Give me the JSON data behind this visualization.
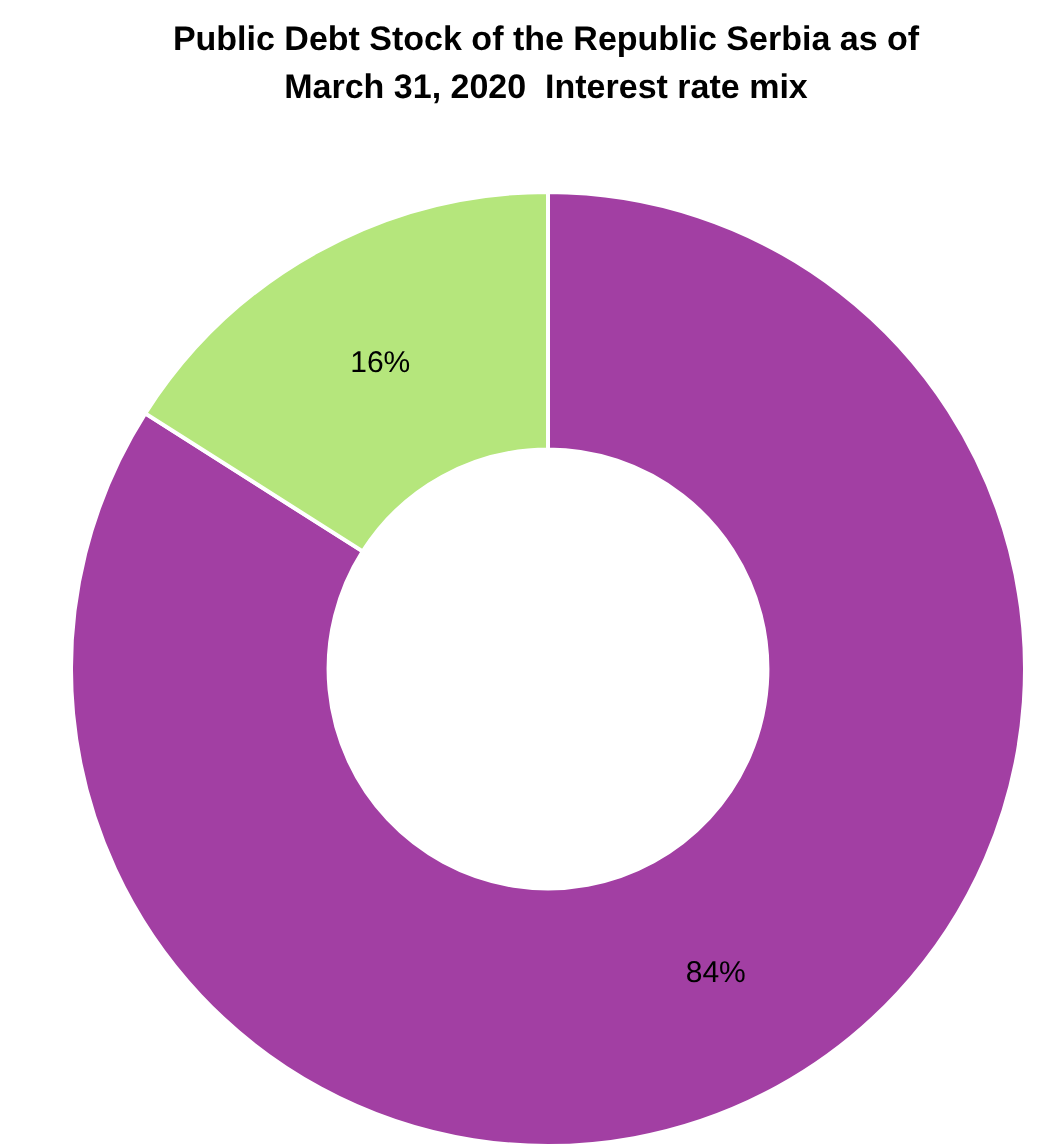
{
  "chart_data": {
    "type": "donut",
    "title": "Public Debt Stock of the Republic Serbia as of March 31, 2020  Interest rate mix",
    "categories": [
      null,
      null
    ],
    "values": [
      84,
      16
    ],
    "colors": [
      "#a23fa3",
      "#b5e67c"
    ],
    "value_labels": [
      "84%",
      "16%"
    ],
    "legend": false
  }
}
